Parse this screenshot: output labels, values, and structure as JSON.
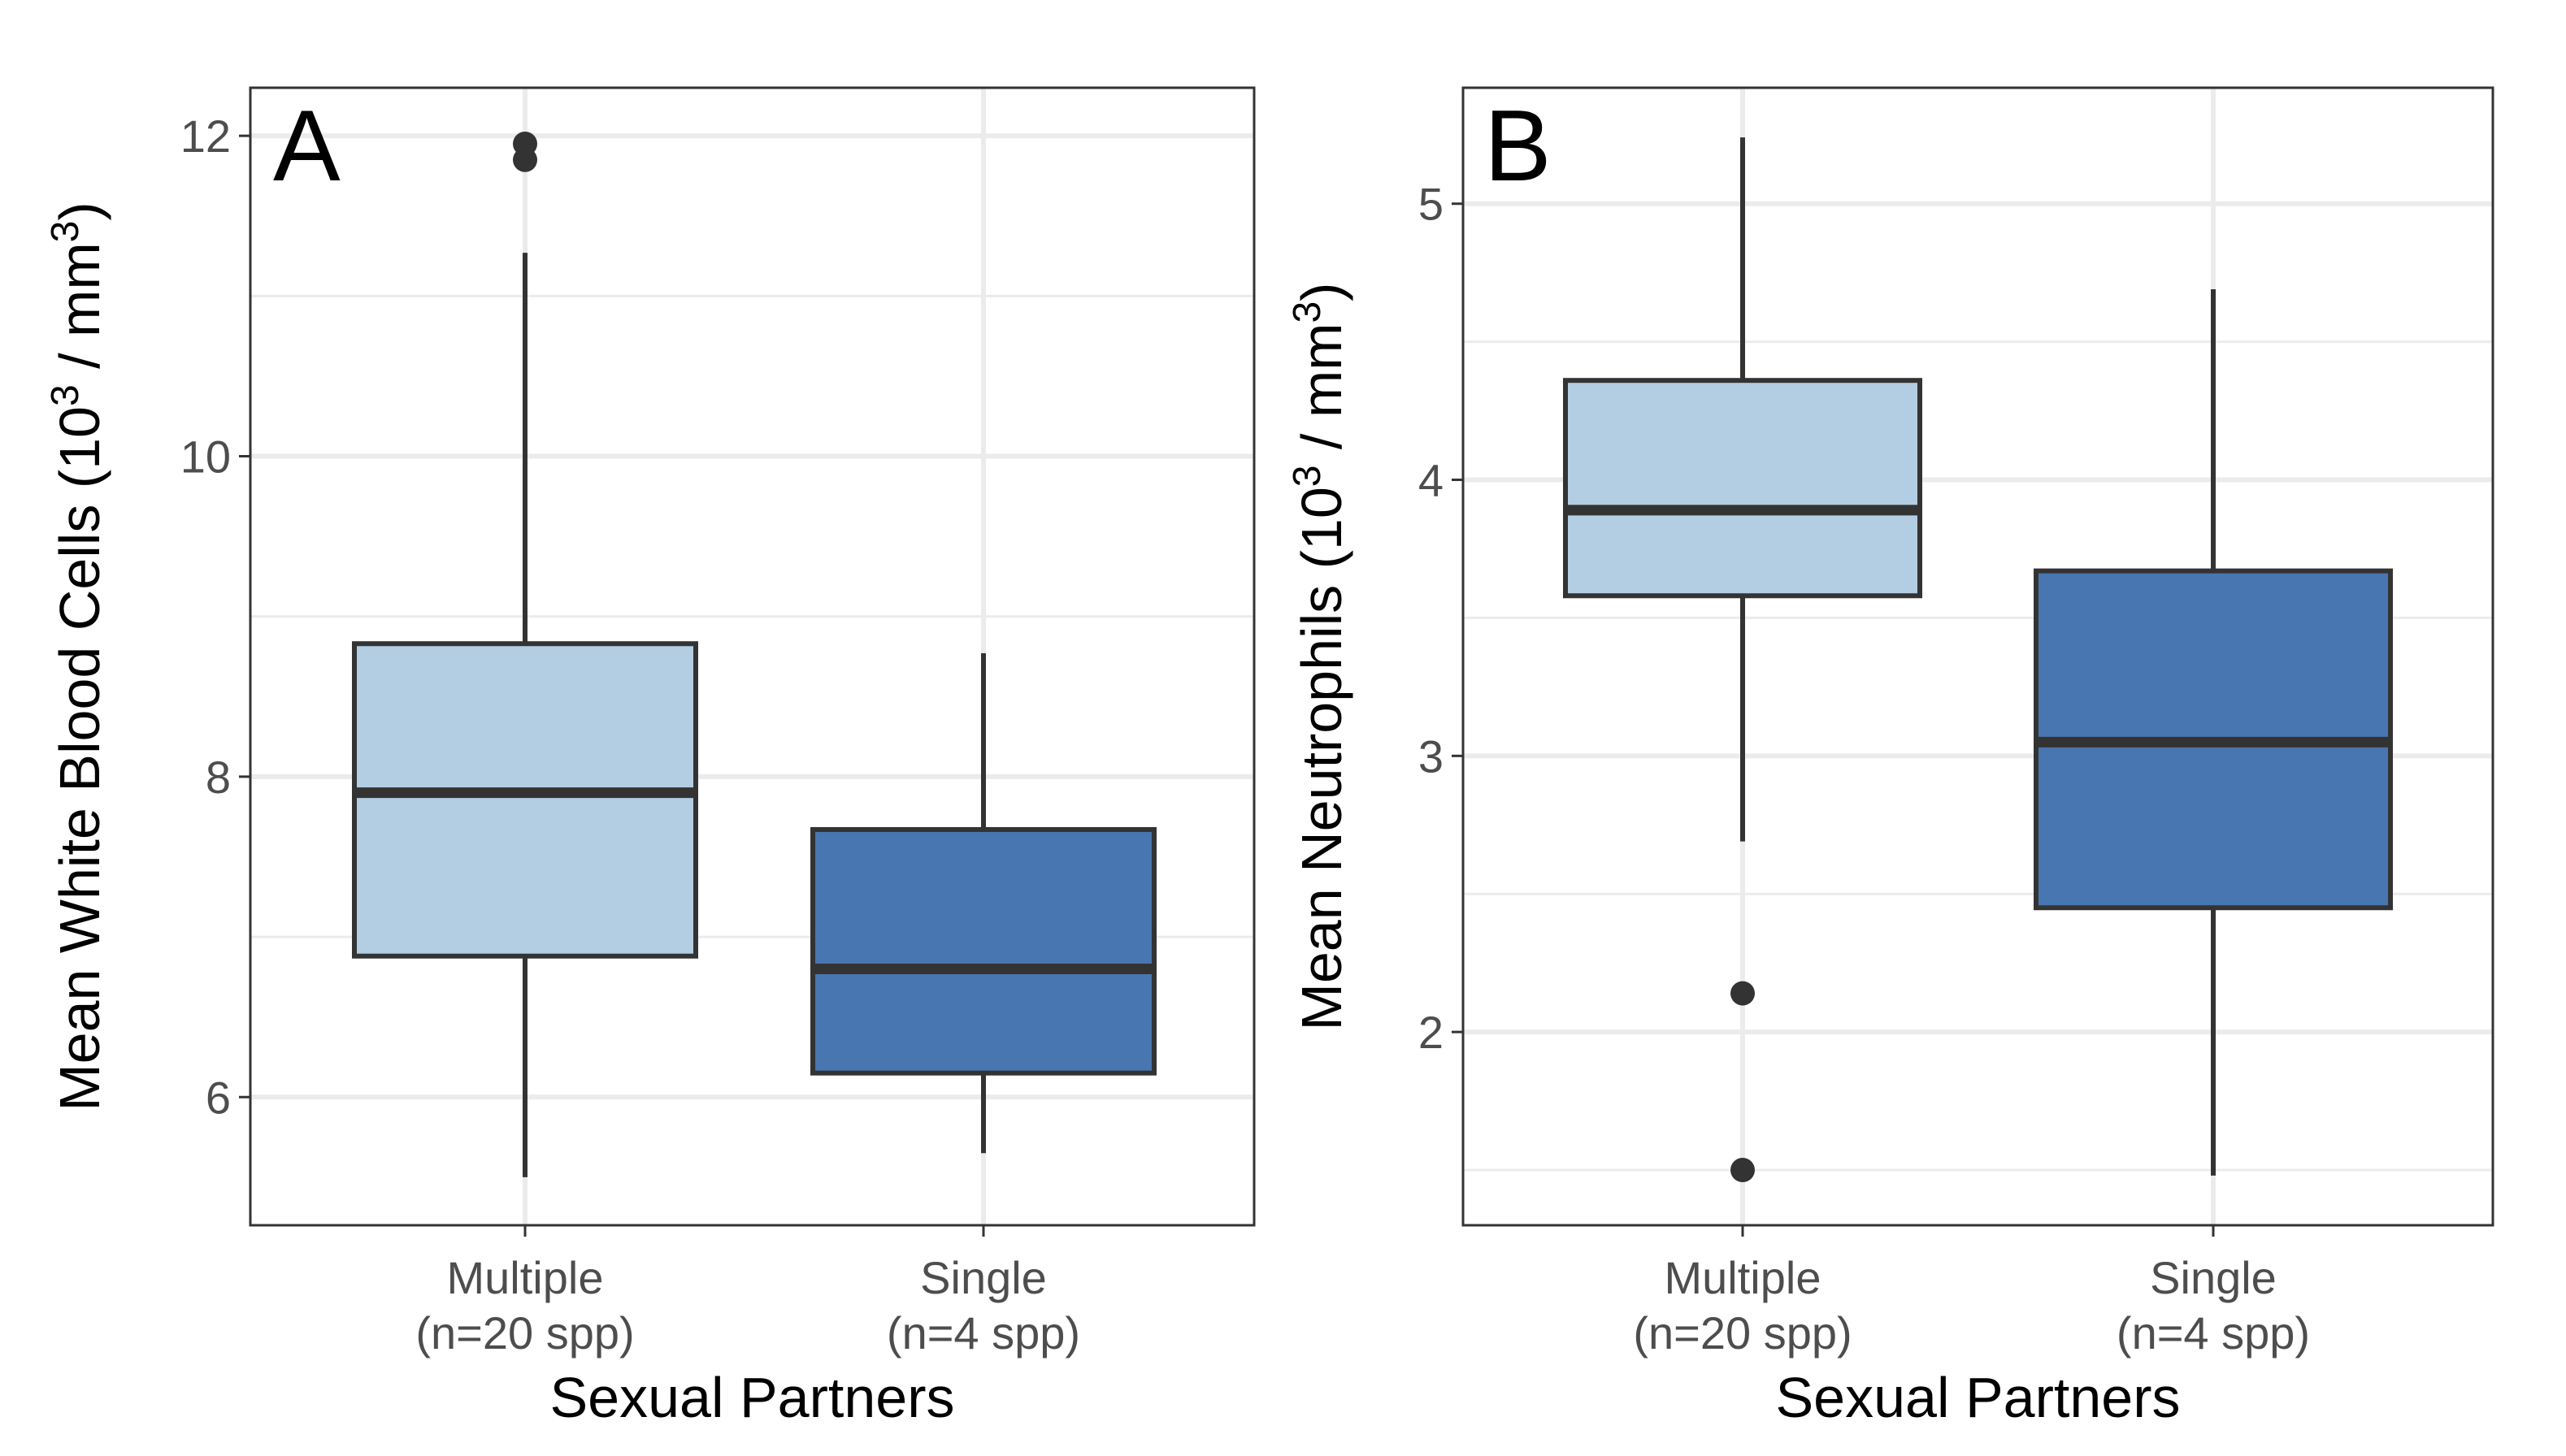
{
  "chart_data": [
    {
      "type": "box",
      "panel_label": "A",
      "xlabel": "Sexual Partners",
      "ylabel_main": "Mean White Blood Cells",
      "ylabel_unit_prefix": "(10",
      "ylabel_unit_exp": "3",
      "ylabel_unit_mid": " / mm",
      "ylabel_unit_exp2": "3",
      "ylabel_unit_suffix": ")",
      "ylim": [
        5.2,
        12.3
      ],
      "yticks": [
        6,
        8,
        10,
        12
      ],
      "ytick_labels": [
        "6",
        "8",
        "10",
        "12"
      ],
      "y_minor_gridlines": [
        7,
        9,
        11
      ],
      "grid": true,
      "categories": [
        "Multiple",
        "Single"
      ],
      "category_sublabels": [
        "(n=20 spp)",
        "(n=4 spp)"
      ],
      "boxes": [
        {
          "category": "Multiple",
          "whisker_low": 5.5,
          "q1": 6.88,
          "median": 7.9,
          "q3": 8.83,
          "whisker_high": 11.27,
          "outliers": [
            11.85,
            11.95
          ],
          "fill": "#b3cde3"
        },
        {
          "category": "Single",
          "whisker_low": 5.65,
          "q1": 6.15,
          "median": 6.8,
          "q3": 7.67,
          "whisker_high": 8.77,
          "outliers": [],
          "fill": "#4876b0"
        }
      ]
    },
    {
      "type": "box",
      "panel_label": "B",
      "xlabel": "Sexual Partners",
      "ylabel_main": "Mean Neutrophils",
      "ylabel_unit_prefix": "(10",
      "ylabel_unit_exp": "3",
      "ylabel_unit_mid": " / mm",
      "ylabel_unit_exp2": "3",
      "ylabel_unit_suffix": ")",
      "ylim": [
        1.3,
        5.42
      ],
      "yticks": [
        2,
        3,
        4,
        5
      ],
      "ytick_labels": [
        "2",
        "3",
        "4",
        "5"
      ],
      "y_minor_gridlines": [
        1.5,
        2.5,
        3.5,
        4.5
      ],
      "grid": true,
      "categories": [
        "Multiple",
        "Single"
      ],
      "category_sublabels": [
        "(n=20 spp)",
        "(n=4 spp)"
      ],
      "boxes": [
        {
          "category": "Multiple",
          "whisker_low": 2.69,
          "q1": 3.58,
          "median": 3.89,
          "q3": 4.36,
          "whisker_high": 5.24,
          "outliers": [
            2.14,
            1.5
          ],
          "fill": "#b3cde3"
        },
        {
          "category": "Single",
          "whisker_low": 1.48,
          "q1": 2.45,
          "median": 3.05,
          "q3": 3.67,
          "whisker_high": 4.69,
          "outliers": [],
          "fill": "#4876b0"
        }
      ]
    }
  ],
  "colors": {
    "major_grid": "#ebebeb",
    "minor_grid": "#ebebeb",
    "box_outline": "#333333",
    "panel_border": "#333333"
  }
}
